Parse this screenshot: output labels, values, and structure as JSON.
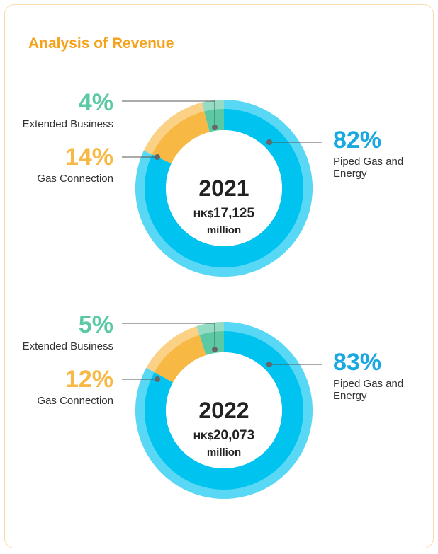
{
  "title": "Analysis of Revenue",
  "chart_data": [
    {
      "type": "pie",
      "title": "2021",
      "currency": "HK$",
      "total_label": "17,125",
      "unit": "million",
      "categories": [
        "Piped Gas and Energy",
        "Gas Connection",
        "Extended Business"
      ],
      "values": [
        82,
        14,
        4
      ],
      "value_labels": [
        "82%",
        "14%",
        "4%"
      ],
      "colors": [
        "#00c3f0",
        "#f7b844",
        "#5cc9a5"
      ]
    },
    {
      "type": "pie",
      "title": "2022",
      "currency": "HK$",
      "total_label": "20,073",
      "unit": "million",
      "categories": [
        "Piped Gas and Energy",
        "Gas Connection",
        "Extended Business"
      ],
      "values": [
        83,
        12,
        5
      ],
      "value_labels": [
        "83%",
        "12%",
        "5%"
      ],
      "colors": [
        "#00c3f0",
        "#f7b844",
        "#5cc9a5"
      ]
    }
  ]
}
